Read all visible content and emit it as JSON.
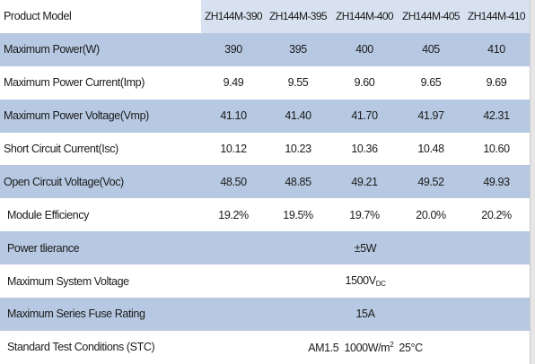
{
  "table": {
    "header": {
      "label": "Product Model",
      "models": [
        "ZH144M-390",
        "ZH144M-395",
        "ZH144M-400",
        "ZH144M-405",
        "ZH144M-410"
      ]
    },
    "rows": [
      {
        "label": "Maximum Power(W)",
        "values": [
          "390",
          "395",
          "400",
          "405",
          "410"
        ]
      },
      {
        "label": "Maximum Power Current(Imp)",
        "values": [
          "9.49",
          "9.55",
          "9.60",
          "9.65",
          "9.69"
        ]
      },
      {
        "label": "Maximum Power Voltage(Vmp)",
        "values": [
          "41.10",
          "41.40",
          "41.70",
          "41.97",
          "42.31"
        ]
      },
      {
        "label": "Short Circuit Current(Isc)",
        "values": [
          "10.12",
          "10.23",
          "10.36",
          "10.48",
          "10.60"
        ]
      },
      {
        "label": "Open Circuit Voltage(Voc)",
        "values": [
          "48.50",
          "48.85",
          "49.21",
          "49.52",
          "49.93"
        ]
      },
      {
        "label": "Module Efficiency",
        "values": [
          "19.2%",
          "19.5%",
          "19.7%",
          "20.0%",
          "20.2%"
        ]
      }
    ],
    "merged_rows": [
      {
        "label": "Power tlierance",
        "value": "±5W"
      },
      {
        "label": "Maximum System Voltage",
        "value": "1500V",
        "value_sub": "DC"
      },
      {
        "label": "Maximum Series Fuse Rating",
        "value": "15A"
      },
      {
        "label": "Standard Test Conditions (STC)",
        "value_a": "AM1.5  1000W/m",
        "value_sup": "2",
        "value_b": "  25°C"
      }
    ]
  }
}
